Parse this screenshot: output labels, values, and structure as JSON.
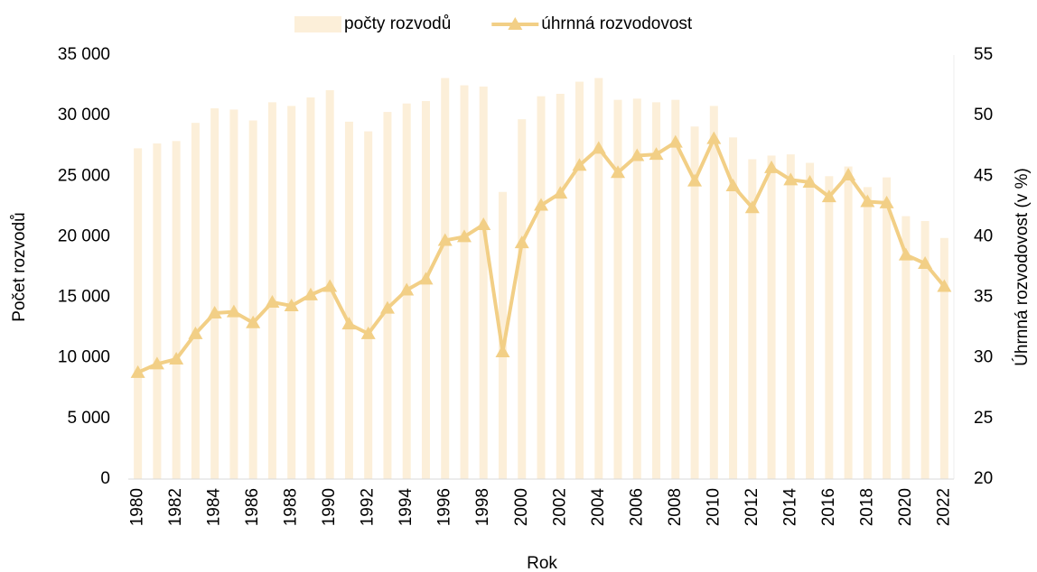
{
  "chart_data": {
    "type": "bar-line",
    "x_label": "Rok",
    "y_label": "Počet rozvodů",
    "y2_label": "Úhrnná rozvodovost (v %)",
    "categories": [
      "1980",
      null,
      "1982",
      null,
      "1984",
      null,
      "1986",
      null,
      "1988",
      null,
      "1990",
      null,
      "1992",
      null,
      "1994",
      null,
      "1996",
      null,
      "1998",
      null,
      "2000",
      null,
      "2002",
      null,
      "2004",
      null,
      "2006",
      null,
      "2008",
      null,
      "2010",
      null,
      "2012",
      null,
      "2014",
      null,
      "2016",
      null,
      "2018",
      null,
      "2020",
      null,
      "2022"
    ],
    "series": [
      {
        "name": "počty rozvodů",
        "type": "bar",
        "color": "#fcefd9",
        "values": [
          27300,
          27700,
          27900,
          29400,
          30600,
          30500,
          29600,
          31100,
          30800,
          31500,
          32100,
          29500,
          28700,
          30300,
          31000,
          31200,
          33100,
          32500,
          32400,
          23700,
          29700,
          31600,
          31800,
          32800,
          33100,
          31300,
          31400,
          31100,
          31300,
          29100,
          30800,
          28200,
          26400,
          26700,
          26800,
          26100,
          25000,
          25800,
          24100,
          24900,
          21700,
          21300,
          19900
        ]
      },
      {
        "name": "úhrnná rozvodovost",
        "type": "line",
        "axis": "y2",
        "color": "#f2cf86",
        "values": [
          28.8,
          29.5,
          29.9,
          32.0,
          33.7,
          33.8,
          32.9,
          34.6,
          34.3,
          35.2,
          35.9,
          32.8,
          32.0,
          34.1,
          35.6,
          36.5,
          39.7,
          40.0,
          41.0,
          30.5,
          39.5,
          42.6,
          43.6,
          45.9,
          47.3,
          45.3,
          46.7,
          46.8,
          47.8,
          44.6,
          48.1,
          44.2,
          42.4,
          45.7,
          44.7,
          44.5,
          43.3,
          45.1,
          42.9,
          42.8,
          38.5,
          37.8,
          35.9
        ]
      }
    ],
    "ylim": [
      0,
      35000
    ],
    "yticks": [
      0,
      {
        "value": 5000,
        "label": "5 000"
      },
      {
        "value": 10000,
        "label": "10 000"
      },
      {
        "value": 15000,
        "label": "15 000"
      },
      {
        "value": 20000,
        "label": "20 000"
      },
      {
        "value": 25000,
        "label": "25 000"
      },
      {
        "value": 30000,
        "label": "30 000"
      },
      {
        "value": 35000,
        "label": "35 000"
      }
    ],
    "y2lim": [
      20,
      55
    ],
    "y2ticks": [
      20,
      25,
      30,
      35,
      40,
      45,
      50,
      55
    ],
    "legend": "top"
  }
}
